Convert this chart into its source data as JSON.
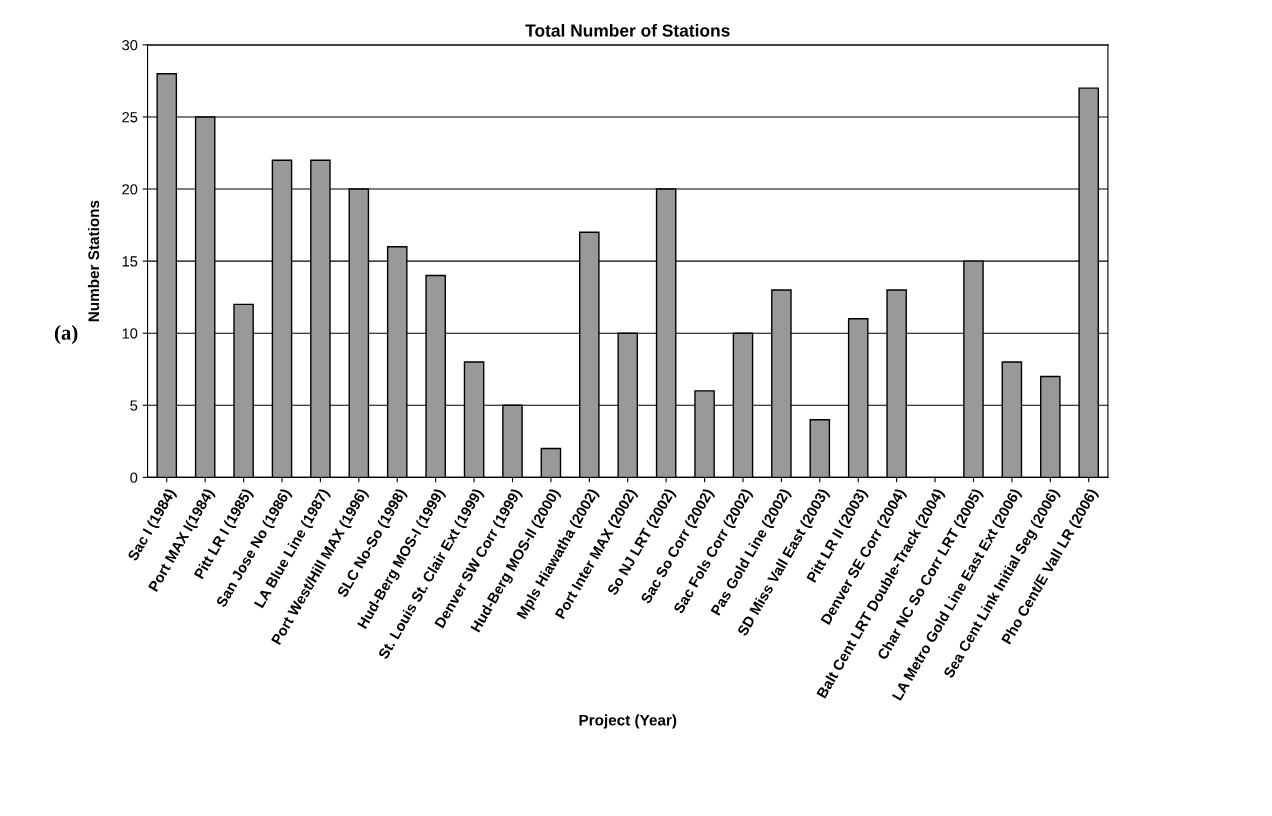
{
  "chart_data": {
    "type": "bar",
    "title": "Total Number of Stations",
    "xlabel": "Project (Year)",
    "ylabel": "Number Stations",
    "annotations": [
      "(a)"
    ],
    "categories": [
      "Sac I (1984)",
      "Port MAX I(1984)",
      "Pitt LR I (1985)",
      "San Jose No (1986)",
      "LA Blue Line (1987)",
      "Port West/Hill MAX (1996)",
      "SLC No-So (1998)",
      "Hud-Berg MOS-I (1999)",
      "St. Louis St. Clair Ext (1999)",
      "Denver SW Corr (1999)",
      "Hud-Berg MOS-II (2000)",
      "Mpls Hiawatha (2002)",
      "Port Inter MAX (2002)",
      "So NJ LRT (2002)",
      "Sac So Corr (2002)",
      "Sac Fols Corr (2002)",
      "Pas Gold Line (2002)",
      "SD Miss Vall East (2003)",
      "Pitt LR II (2003)",
      "Denver SE Corr (2004)",
      "Balt Cent LRT Double-Track (2004)",
      "Char NC So Corr LRT (2005)",
      "LA Metro Gold Line East Ext (2006)",
      "Sea Cent Link Initial Seg (2006)",
      "Pho Cent/E Vall LR (2006)"
    ],
    "values": [
      28,
      25,
      12,
      22,
      22,
      20,
      16,
      14,
      8,
      5,
      2,
      17,
      10,
      20,
      6,
      10,
      13,
      4,
      11,
      13,
      null,
      15,
      8,
      7,
      27
    ],
    "color": "#999999",
    "ylim": [
      0,
      30
    ],
    "yticks": [
      0,
      5,
      10,
      15,
      20,
      25,
      30
    ],
    "grid": "y",
    "legend": false
  }
}
